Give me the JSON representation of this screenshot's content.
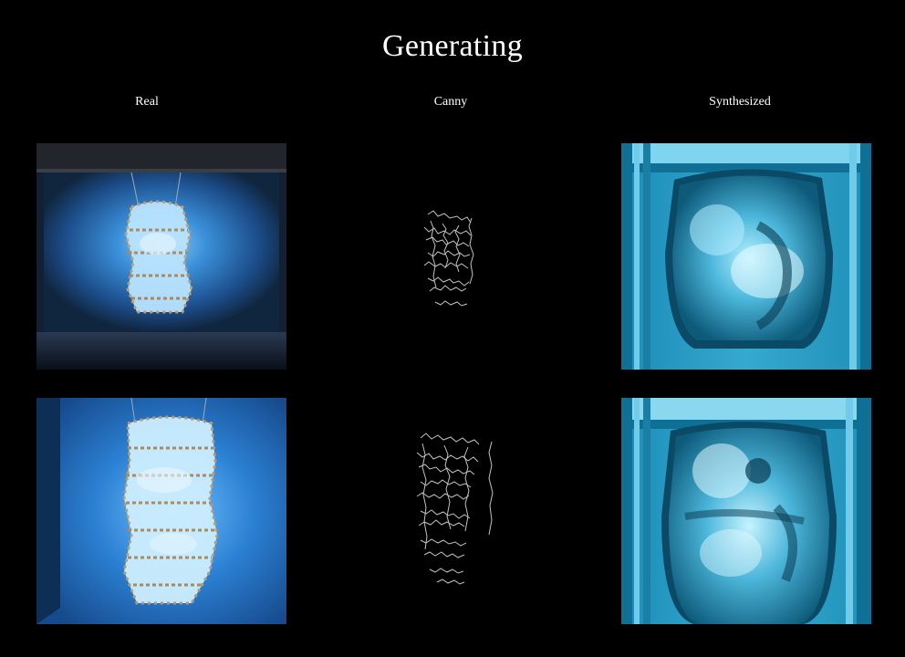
{
  "title": "Generating",
  "columns": {
    "real": "Real",
    "canny": "Canny",
    "synthesized": "Synthesized"
  },
  "colors": {
    "background": "#000000",
    "accent_blue": "#2f86c8",
    "cyan": "#3aa9cf",
    "text": "#ffffff"
  },
  "rows": [
    {
      "real": "photo-sculpture-1",
      "canny": "edges-sculpture-1",
      "synthesized": "synth-sculpture-1"
    },
    {
      "real": "photo-sculpture-2",
      "canny": "edges-sculpture-2",
      "synthesized": "synth-sculpture-2"
    }
  ]
}
